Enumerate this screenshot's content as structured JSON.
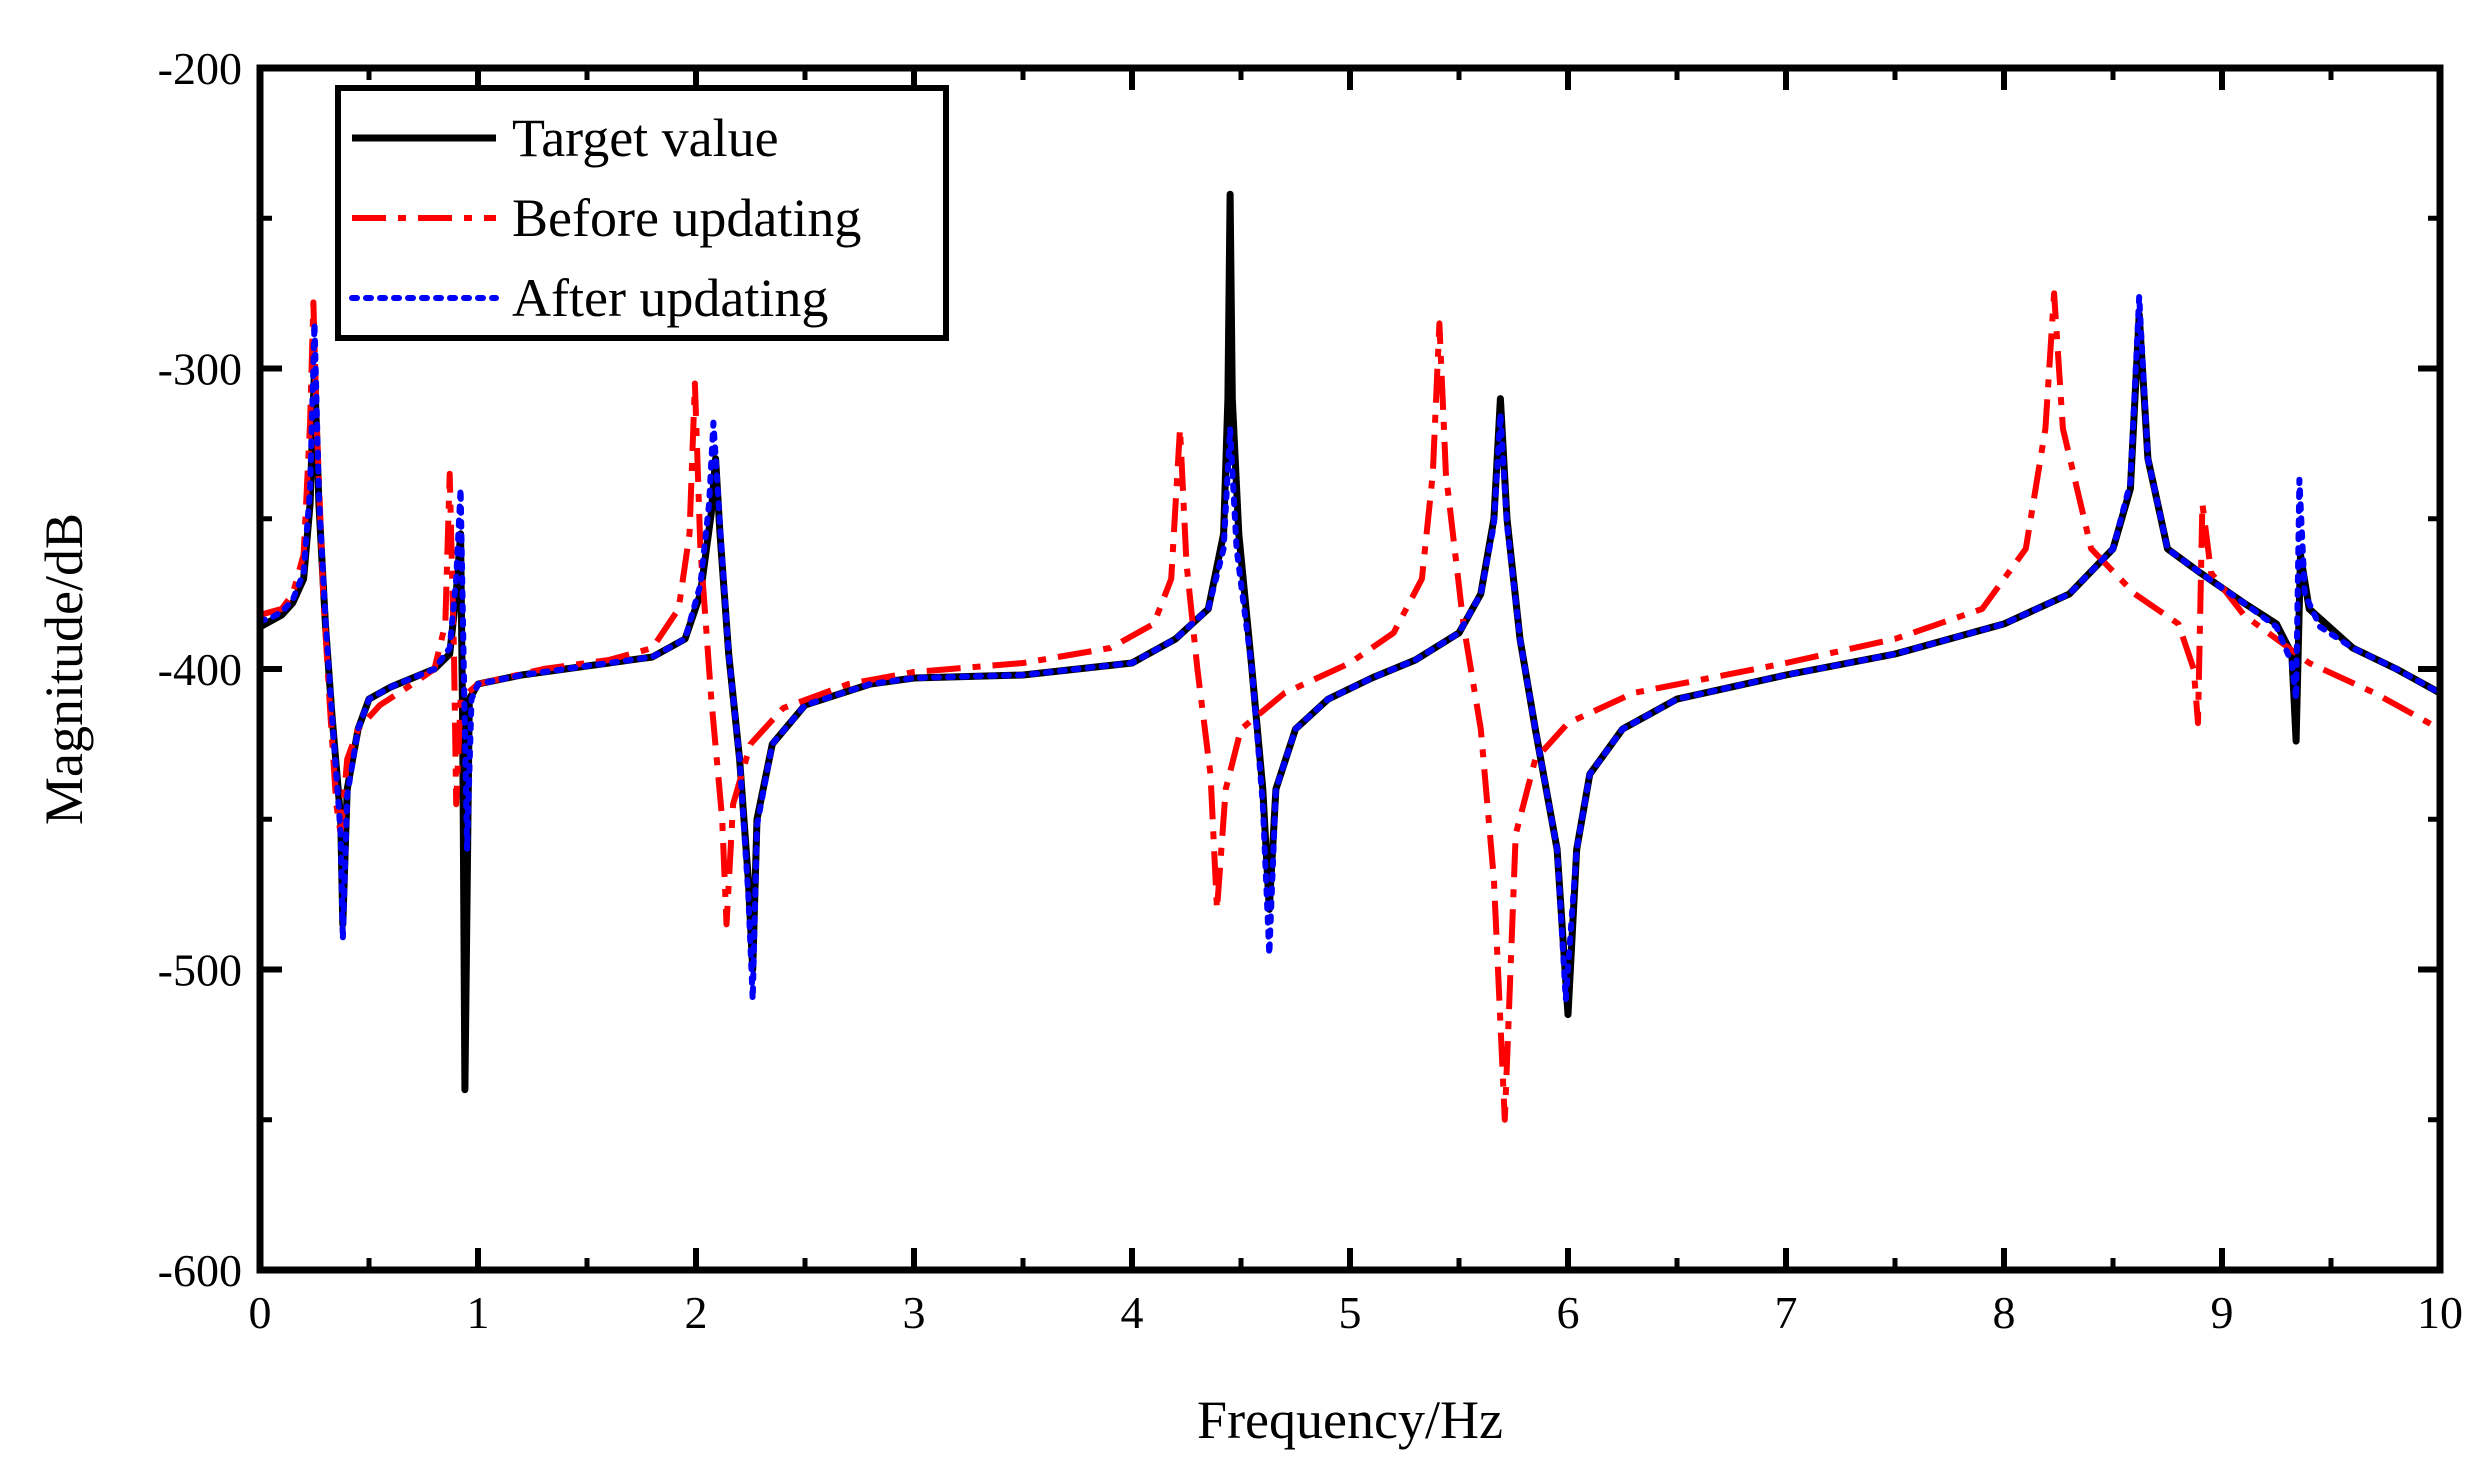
{
  "chart_data": {
    "type": "line",
    "title": "",
    "xlabel": "Frequency/Hz",
    "ylabel": "Magnitude/dB",
    "xlim": [
      0,
      10
    ],
    "ylim": [
      -600,
      -200
    ],
    "xticks": [
      0,
      1,
      2,
      3,
      4,
      5,
      6,
      7,
      8,
      9,
      10
    ],
    "yticks": [
      -600,
      -500,
      -400,
      -300,
      -200
    ],
    "xtick_labels": [
      "0",
      "1",
      "2",
      "3",
      "4",
      "5",
      "6",
      "7",
      "8",
      "9",
      "10"
    ],
    "ytick_labels": [
      "-600",
      "-500",
      "-400",
      "-300",
      "-200"
    ],
    "grid": false,
    "legend_position": "top-left",
    "series": [
      {
        "name": "Target value",
        "color": "#000000",
        "style": "solid",
        "points": [
          [
            0.0,
            -386
          ],
          [
            0.05,
            -384
          ],
          [
            0.1,
            -382
          ],
          [
            0.15,
            -378
          ],
          [
            0.2,
            -370
          ],
          [
            0.23,
            -345
          ],
          [
            0.25,
            -300
          ],
          [
            0.27,
            -345
          ],
          [
            0.3,
            -385
          ],
          [
            0.33,
            -415
          ],
          [
            0.37,
            -450
          ],
          [
            0.38,
            -485
          ],
          [
            0.4,
            -440
          ],
          [
            0.45,
            -420
          ],
          [
            0.5,
            -410
          ],
          [
            0.6,
            -406
          ],
          [
            0.7,
            -403
          ],
          [
            0.8,
            -400
          ],
          [
            0.87,
            -395
          ],
          [
            0.9,
            -375
          ],
          [
            0.92,
            -355
          ],
          [
            0.93,
            -420
          ],
          [
            0.94,
            -540
          ],
          [
            0.96,
            -410
          ],
          [
            1.0,
            -405
          ],
          [
            1.2,
            -402
          ],
          [
            1.4,
            -400
          ],
          [
            1.6,
            -398
          ],
          [
            1.8,
            -396
          ],
          [
            1.95,
            -390
          ],
          [
            2.02,
            -375
          ],
          [
            2.07,
            -348
          ],
          [
            2.09,
            -330
          ],
          [
            2.11,
            -355
          ],
          [
            2.15,
            -395
          ],
          [
            2.2,
            -430
          ],
          [
            2.24,
            -470
          ],
          [
            2.26,
            -500
          ],
          [
            2.28,
            -450
          ],
          [
            2.35,
            -425
          ],
          [
            2.5,
            -412
          ],
          [
            2.8,
            -405
          ],
          [
            3.0,
            -403
          ],
          [
            3.5,
            -402
          ],
          [
            4.0,
            -398
          ],
          [
            4.2,
            -390
          ],
          [
            4.35,
            -380
          ],
          [
            4.42,
            -355
          ],
          [
            4.44,
            -310
          ],
          [
            4.45,
            -242
          ],
          [
            4.46,
            -310
          ],
          [
            4.49,
            -355
          ],
          [
            4.55,
            -400
          ],
          [
            4.6,
            -440
          ],
          [
            4.63,
            -480
          ],
          [
            4.66,
            -440
          ],
          [
            4.75,
            -420
          ],
          [
            4.9,
            -410
          ],
          [
            5.1,
            -403
          ],
          [
            5.3,
            -397
          ],
          [
            5.5,
            -388
          ],
          [
            5.6,
            -375
          ],
          [
            5.66,
            -350
          ],
          [
            5.69,
            -310
          ],
          [
            5.72,
            -350
          ],
          [
            5.78,
            -390
          ],
          [
            5.85,
            -420
          ],
          [
            5.95,
            -460
          ],
          [
            6.0,
            -515
          ],
          [
            6.04,
            -460
          ],
          [
            6.1,
            -435
          ],
          [
            6.25,
            -420
          ],
          [
            6.5,
            -410
          ],
          [
            7.0,
            -402
          ],
          [
            7.5,
            -395
          ],
          [
            8.0,
            -385
          ],
          [
            8.3,
            -375
          ],
          [
            8.5,
            -360
          ],
          [
            8.58,
            -340
          ],
          [
            8.62,
            -282
          ],
          [
            8.66,
            -330
          ],
          [
            8.75,
            -360
          ],
          [
            8.9,
            -368
          ],
          [
            9.1,
            -378
          ],
          [
            9.25,
            -385
          ],
          [
            9.32,
            -395
          ],
          [
            9.34,
            -424
          ],
          [
            9.36,
            -362
          ],
          [
            9.4,
            -380
          ],
          [
            9.6,
            -393
          ],
          [
            9.8,
            -400
          ],
          [
            10.0,
            -408
          ]
        ]
      },
      {
        "name": "Before updating",
        "color": "#ff0000",
        "style": "dashdot",
        "points": [
          [
            0.0,
            -382
          ],
          [
            0.05,
            -381
          ],
          [
            0.1,
            -380
          ],
          [
            0.15,
            -375
          ],
          [
            0.2,
            -362
          ],
          [
            0.23,
            -318
          ],
          [
            0.245,
            -278
          ],
          [
            0.26,
            -318
          ],
          [
            0.29,
            -375
          ],
          [
            0.32,
            -412
          ],
          [
            0.35,
            -445
          ],
          [
            0.37,
            -455
          ],
          [
            0.4,
            -430
          ],
          [
            0.45,
            -420
          ],
          [
            0.55,
            -412
          ],
          [
            0.7,
            -405
          ],
          [
            0.8,
            -400
          ],
          [
            0.85,
            -385
          ],
          [
            0.87,
            -335
          ],
          [
            0.89,
            -395
          ],
          [
            0.9,
            -445
          ],
          [
            0.92,
            -410
          ],
          [
            1.0,
            -405
          ],
          [
            1.3,
            -400
          ],
          [
            1.6,
            -397
          ],
          [
            1.8,
            -393
          ],
          [
            1.92,
            -380
          ],
          [
            1.97,
            -355
          ],
          [
            1.995,
            -305
          ],
          [
            2.02,
            -360
          ],
          [
            2.07,
            -410
          ],
          [
            2.12,
            -450
          ],
          [
            2.14,
            -485
          ],
          [
            2.17,
            -445
          ],
          [
            2.25,
            -425
          ],
          [
            2.4,
            -413
          ],
          [
            2.7,
            -405
          ],
          [
            3.0,
            -401
          ],
          [
            3.5,
            -398
          ],
          [
            3.9,
            -393
          ],
          [
            4.1,
            -385
          ],
          [
            4.18,
            -370
          ],
          [
            4.22,
            -320
          ],
          [
            4.25,
            -365
          ],
          [
            4.3,
            -400
          ],
          [
            4.36,
            -435
          ],
          [
            4.39,
            -480
          ],
          [
            4.43,
            -440
          ],
          [
            4.5,
            -420
          ],
          [
            4.7,
            -408
          ],
          [
            5.0,
            -398
          ],
          [
            5.2,
            -388
          ],
          [
            5.33,
            -370
          ],
          [
            5.38,
            -335
          ],
          [
            5.41,
            -285
          ],
          [
            5.44,
            -335
          ],
          [
            5.52,
            -385
          ],
          [
            5.6,
            -420
          ],
          [
            5.66,
            -470
          ],
          [
            5.71,
            -550
          ],
          [
            5.76,
            -455
          ],
          [
            5.85,
            -430
          ],
          [
            6.0,
            -418
          ],
          [
            6.3,
            -408
          ],
          [
            7.0,
            -398
          ],
          [
            7.5,
            -390
          ],
          [
            7.9,
            -380
          ],
          [
            8.1,
            -360
          ],
          [
            8.19,
            -320
          ],
          [
            8.23,
            -275
          ],
          [
            8.27,
            -320
          ],
          [
            8.4,
            -360
          ],
          [
            8.6,
            -375
          ],
          [
            8.8,
            -385
          ],
          [
            8.87,
            -400
          ],
          [
            8.89,
            -418
          ],
          [
            8.91,
            -345
          ],
          [
            8.95,
            -368
          ],
          [
            9.1,
            -382
          ],
          [
            9.4,
            -398
          ],
          [
            9.7,
            -408
          ],
          [
            10.0,
            -420
          ]
        ]
      },
      {
        "name": "After updating",
        "color": "#0000ff",
        "style": "dotted",
        "points": [
          [
            0.0,
            -384
          ],
          [
            0.05,
            -383
          ],
          [
            0.1,
            -381
          ],
          [
            0.15,
            -377
          ],
          [
            0.2,
            -368
          ],
          [
            0.23,
            -340
          ],
          [
            0.25,
            -285
          ],
          [
            0.27,
            -342
          ],
          [
            0.3,
            -383
          ],
          [
            0.33,
            -415
          ],
          [
            0.37,
            -455
          ],
          [
            0.38,
            -490
          ],
          [
            0.4,
            -442
          ],
          [
            0.45,
            -420
          ],
          [
            0.5,
            -410
          ],
          [
            0.6,
            -406
          ],
          [
            0.7,
            -403
          ],
          [
            0.8,
            -400
          ],
          [
            0.87,
            -393
          ],
          [
            0.9,
            -370
          ],
          [
            0.92,
            -340
          ],
          [
            0.935,
            -400
          ],
          [
            0.95,
            -460
          ],
          [
            0.97,
            -410
          ],
          [
            1.0,
            -405
          ],
          [
            1.2,
            -402
          ],
          [
            1.4,
            -400
          ],
          [
            1.6,
            -398
          ],
          [
            1.8,
            -396
          ],
          [
            1.95,
            -390
          ],
          [
            2.02,
            -372
          ],
          [
            2.06,
            -345
          ],
          [
            2.08,
            -318
          ],
          [
            2.11,
            -352
          ],
          [
            2.15,
            -395
          ],
          [
            2.2,
            -430
          ],
          [
            2.24,
            -475
          ],
          [
            2.26,
            -510
          ],
          [
            2.28,
            -452
          ],
          [
            2.35,
            -425
          ],
          [
            2.5,
            -412
          ],
          [
            2.8,
            -405
          ],
          [
            3.0,
            -403
          ],
          [
            3.5,
            -402
          ],
          [
            4.0,
            -398
          ],
          [
            4.2,
            -390
          ],
          [
            4.35,
            -380
          ],
          [
            4.42,
            -360
          ],
          [
            4.45,
            -320
          ],
          [
            4.48,
            -360
          ],
          [
            4.55,
            -400
          ],
          [
            4.6,
            -445
          ],
          [
            4.63,
            -495
          ],
          [
            4.66,
            -440
          ],
          [
            4.75,
            -420
          ],
          [
            4.9,
            -410
          ],
          [
            5.1,
            -403
          ],
          [
            5.3,
            -397
          ],
          [
            5.5,
            -388
          ],
          [
            5.6,
            -375
          ],
          [
            5.66,
            -352
          ],
          [
            5.69,
            -315
          ],
          [
            5.72,
            -352
          ],
          [
            5.78,
            -390
          ],
          [
            5.85,
            -420
          ],
          [
            5.95,
            -460
          ],
          [
            5.99,
            -510
          ],
          [
            6.04,
            -460
          ],
          [
            6.1,
            -435
          ],
          [
            6.25,
            -420
          ],
          [
            6.5,
            -410
          ],
          [
            7.0,
            -402
          ],
          [
            7.5,
            -395
          ],
          [
            8.0,
            -385
          ],
          [
            8.3,
            -375
          ],
          [
            8.5,
            -360
          ],
          [
            8.58,
            -338
          ],
          [
            8.62,
            -276
          ],
          [
            8.66,
            -330
          ],
          [
            8.75,
            -360
          ],
          [
            8.9,
            -368
          ],
          [
            9.1,
            -378
          ],
          [
            9.25,
            -386
          ],
          [
            9.32,
            -398
          ],
          [
            9.34,
            -410
          ],
          [
            9.355,
            -337
          ],
          [
            9.38,
            -375
          ],
          [
            9.45,
            -386
          ],
          [
            9.6,
            -393
          ],
          [
            9.8,
            -400
          ],
          [
            10.0,
            -408
          ]
        ]
      }
    ]
  }
}
